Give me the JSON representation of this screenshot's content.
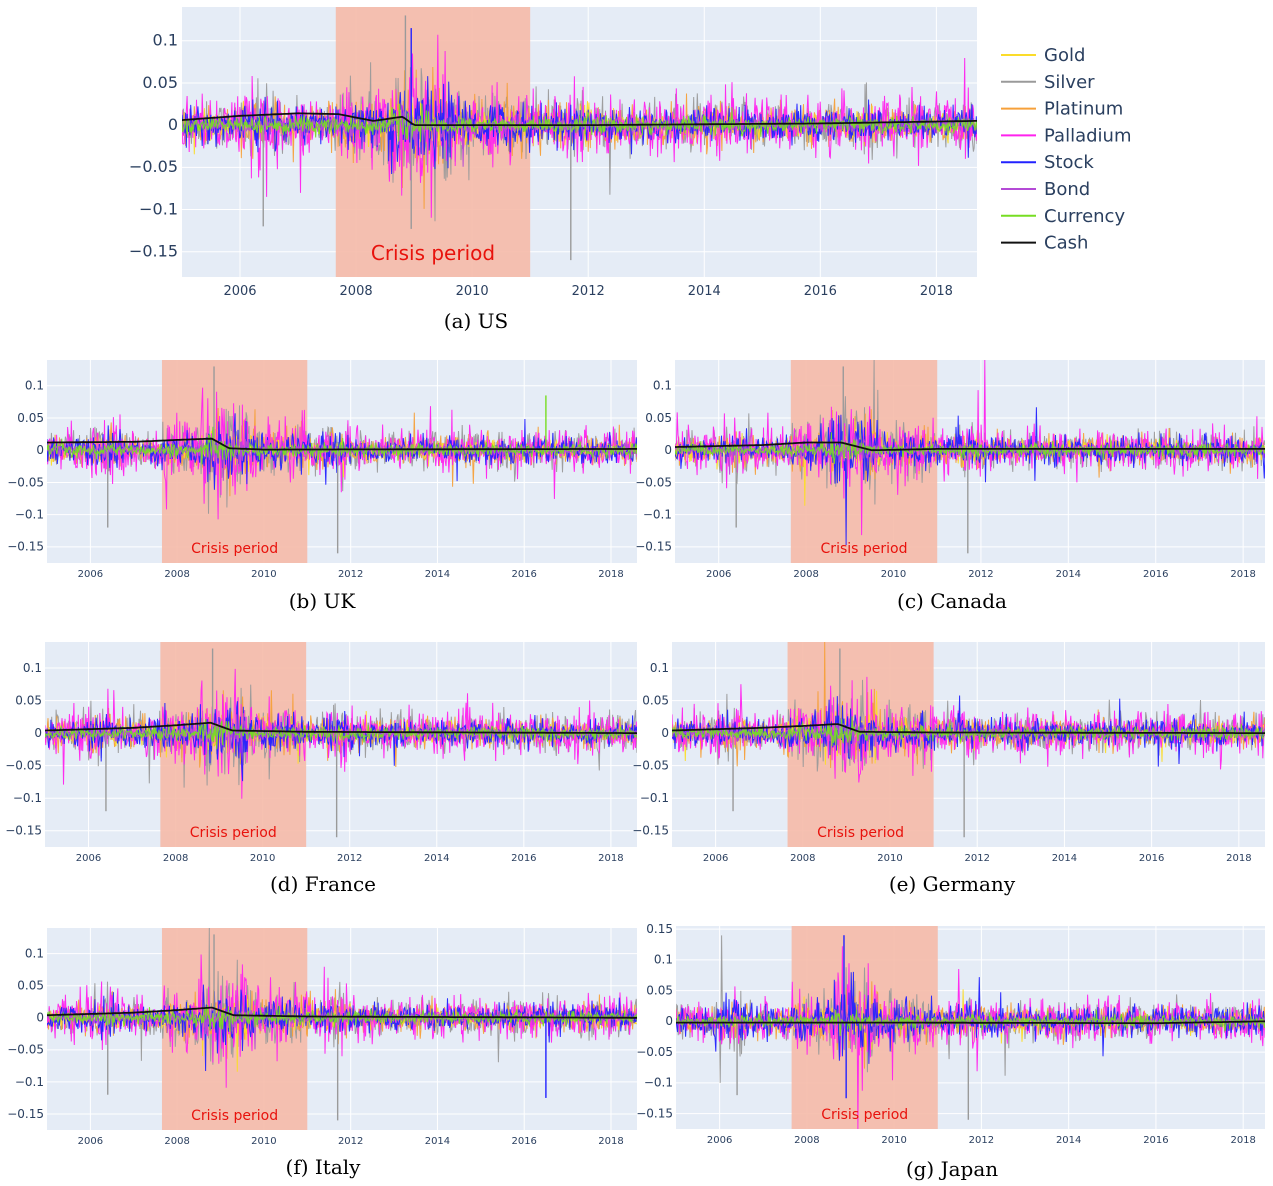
{
  "chart_data": [
    {
      "id": "a",
      "type": "line",
      "caption": "(a) US",
      "annotation": "Crisis period",
      "crisis_period": [
        2007.65,
        2011.0
      ],
      "xlim": [
        2005.0,
        2018.7
      ],
      "ylim": [
        -0.18,
        0.14
      ],
      "xticks": [
        "2006",
        "2008",
        "2010",
        "2012",
        "2014",
        "2016",
        "2018"
      ],
      "yticks": [
        [
          "0.1",
          0.1
        ],
        [
          "0.05",
          0.05
        ],
        [
          "0",
          0
        ],
        [
          "−0.05",
          -0.05
        ],
        [
          "−0.1",
          -0.1
        ],
        [
          "−0.15",
          -0.15
        ]
      ],
      "cash": [
        [
          2005.0,
          0.006
        ],
        [
          2006.0,
          0.011
        ],
        [
          2007.0,
          0.014
        ],
        [
          2007.7,
          0.013
        ],
        [
          2008.3,
          0.005
        ],
        [
          2008.8,
          0.01
        ],
        [
          2009.0,
          0.0
        ],
        [
          2010.0,
          0.0
        ],
        [
          2012.0,
          0.0
        ],
        [
          2016.0,
          0.002
        ],
        [
          2018.7,
          0.005
        ]
      ],
      "extremes": [
        [
          2008.85,
          0.13,
          "Silver"
        ],
        [
          2011.7,
          -0.16,
          "Silver"
        ],
        [
          2008.95,
          0.115,
          "Stock"
        ],
        [
          2008.95,
          -0.123,
          "Silver"
        ],
        [
          2006.4,
          -0.12,
          "Silver"
        ]
      ]
    },
    {
      "id": "b",
      "type": "line",
      "caption": "(b) UK",
      "annotation": "Crisis period",
      "crisis_period": [
        2007.65,
        2011.0
      ],
      "xlim": [
        2005.0,
        2018.6
      ],
      "ylim": [
        -0.175,
        0.14
      ],
      "xticks": [
        "2006",
        "2008",
        "2010",
        "2012",
        "2014",
        "2016",
        "2018"
      ],
      "yticks": [
        [
          "0.1",
          0.1
        ],
        [
          "0.05",
          0.05
        ],
        [
          "0",
          0
        ],
        [
          "−0.05",
          -0.05
        ],
        [
          "−0.1",
          -0.1
        ],
        [
          "−0.15",
          -0.15
        ]
      ],
      "cash": [
        [
          2005.0,
          0.012
        ],
        [
          2007.0,
          0.013
        ],
        [
          2008.0,
          0.016
        ],
        [
          2008.8,
          0.018
        ],
        [
          2009.2,
          0.003
        ],
        [
          2010.0,
          0.001
        ],
        [
          2018.6,
          0.002
        ]
      ],
      "extremes": [
        [
          2008.85,
          0.13,
          "Silver"
        ],
        [
          2011.7,
          -0.16,
          "Silver"
        ],
        [
          2016.5,
          0.085,
          "Currency"
        ],
        [
          2006.4,
          -0.12,
          "Silver"
        ]
      ]
    },
    {
      "id": "c",
      "type": "line",
      "caption": "(c) Canada",
      "annotation": "Crisis period",
      "crisis_period": [
        2007.65,
        2011.0
      ],
      "xlim": [
        2005.0,
        2018.5
      ],
      "ylim": [
        -0.175,
        0.14
      ],
      "xticks": [
        "2006",
        "2008",
        "2010",
        "2012",
        "2014",
        "2016",
        "2018"
      ],
      "yticks": [
        [
          "0.1",
          0.1
        ],
        [
          "0.05",
          0.05
        ],
        [
          "0",
          0
        ],
        [
          "−0.05",
          -0.05
        ],
        [
          "−0.1",
          -0.1
        ],
        [
          "−0.15",
          -0.15
        ]
      ],
      "cash": [
        [
          2005.0,
          0.005
        ],
        [
          2007.0,
          0.008
        ],
        [
          2008.0,
          0.012
        ],
        [
          2008.8,
          0.012
        ],
        [
          2009.5,
          0.0
        ],
        [
          2011.0,
          0.002
        ],
        [
          2018.5,
          0.002
        ]
      ],
      "extremes": [
        [
          2008.85,
          0.13,
          "Silver"
        ],
        [
          2011.7,
          -0.16,
          "Silver"
        ],
        [
          2006.4,
          -0.12,
          "Silver"
        ]
      ]
    },
    {
      "id": "d",
      "type": "line",
      "caption": "(d) France",
      "annotation": "Crisis period",
      "crisis_period": [
        2007.65,
        2011.0
      ],
      "xlim": [
        2005.0,
        2018.6
      ],
      "ylim": [
        -0.175,
        0.14
      ],
      "xticks": [
        "2006",
        "2008",
        "2010",
        "2012",
        "2014",
        "2016",
        "2018"
      ],
      "yticks": [
        [
          "0.1",
          0.1
        ],
        [
          "0.05",
          0.05
        ],
        [
          "0",
          0
        ],
        [
          "−0.05",
          -0.05
        ],
        [
          "−0.1",
          -0.1
        ],
        [
          "−0.15",
          -0.15
        ]
      ],
      "cash": [
        [
          2005.0,
          0.004
        ],
        [
          2007.0,
          0.008
        ],
        [
          2008.0,
          0.012
        ],
        [
          2008.8,
          0.016
        ],
        [
          2009.3,
          0.004
        ],
        [
          2011.0,
          0.002
        ],
        [
          2018.6,
          0.0
        ]
      ],
      "extremes": [
        [
          2008.85,
          0.13,
          "Silver"
        ],
        [
          2011.7,
          -0.16,
          "Silver"
        ],
        [
          2006.4,
          -0.12,
          "Silver"
        ]
      ]
    },
    {
      "id": "e",
      "type": "line",
      "caption": "(e) Germany",
      "annotation": "Crisis period",
      "crisis_period": [
        2007.65,
        2011.0
      ],
      "xlim": [
        2005.0,
        2018.6
      ],
      "ylim": [
        -0.175,
        0.14
      ],
      "xticks": [
        "2006",
        "2008",
        "2010",
        "2012",
        "2014",
        "2016",
        "2018"
      ],
      "yticks": [
        [
          "0.1",
          0.1
        ],
        [
          "0.05",
          0.05
        ],
        [
          "0",
          0
        ],
        [
          "−0.05",
          -0.05
        ],
        [
          "−0.1",
          -0.1
        ],
        [
          "−0.15",
          -0.15
        ]
      ],
      "cash": [
        [
          2005.0,
          0.004
        ],
        [
          2007.0,
          0.008
        ],
        [
          2008.0,
          0.011
        ],
        [
          2008.8,
          0.014
        ],
        [
          2009.3,
          0.002
        ],
        [
          2011.0,
          0.001
        ],
        [
          2018.6,
          0.0
        ]
      ],
      "extremes": [
        [
          2008.85,
          0.13,
          "Silver"
        ],
        [
          2011.7,
          -0.16,
          "Silver"
        ],
        [
          2006.4,
          -0.12,
          "Silver"
        ]
      ]
    },
    {
      "id": "f",
      "type": "line",
      "caption": "(f) Italy",
      "annotation": "Crisis period",
      "crisis_period": [
        2007.65,
        2011.0
      ],
      "xlim": [
        2005.0,
        2018.6
      ],
      "ylim": [
        -0.175,
        0.14
      ],
      "xticks": [
        "2006",
        "2008",
        "2010",
        "2012",
        "2014",
        "2016",
        "2018"
      ],
      "yticks": [
        [
          "0.1",
          0.1
        ],
        [
          "0.05",
          0.05
        ],
        [
          "0",
          0
        ],
        [
          "−0.05",
          -0.05
        ],
        [
          "−0.1",
          -0.1
        ],
        [
          "−0.15",
          -0.15
        ]
      ],
      "cash": [
        [
          2005.0,
          0.004
        ],
        [
          2007.0,
          0.008
        ],
        [
          2008.0,
          0.012
        ],
        [
          2008.8,
          0.016
        ],
        [
          2009.3,
          0.004
        ],
        [
          2011.0,
          0.002
        ],
        [
          2018.6,
          0.0
        ]
      ],
      "extremes": [
        [
          2008.85,
          0.13,
          "Silver"
        ],
        [
          2011.7,
          -0.16,
          "Silver"
        ],
        [
          2016.5,
          -0.125,
          "Stock"
        ],
        [
          2006.4,
          -0.12,
          "Silver"
        ]
      ]
    },
    {
      "id": "g",
      "type": "line",
      "caption": "(g) Japan",
      "annotation": "Crisis period",
      "crisis_period": [
        2007.65,
        2011.0
      ],
      "xlim": [
        2005.0,
        2018.5
      ],
      "ylim": [
        -0.175,
        0.155
      ],
      "xticks": [
        "2006",
        "2008",
        "2010",
        "2012",
        "2014",
        "2016",
        "2018"
      ],
      "yticks": [
        [
          "0.15",
          0.15
        ],
        [
          "0.1",
          0.1
        ],
        [
          "0.05",
          0.05
        ],
        [
          "0",
          0
        ],
        [
          "−0.05",
          -0.05
        ],
        [
          "−0.1",
          -0.1
        ],
        [
          "−0.15",
          -0.15
        ]
      ],
      "cash": [
        [
          2005.0,
          -0.002
        ],
        [
          2010.0,
          -0.002
        ],
        [
          2016.0,
          -0.003
        ],
        [
          2018.5,
          0.0
        ]
      ],
      "extremes": [
        [
          2008.85,
          0.14,
          "Stock"
        ],
        [
          2011.7,
          -0.16,
          "Silver"
        ],
        [
          2008.9,
          -0.125,
          "Stock"
        ],
        [
          2006.4,
          -0.12,
          "Silver"
        ]
      ]
    }
  ],
  "legend": [
    {
      "name": "Gold",
      "color": "#fbdc2a"
    },
    {
      "name": "Silver",
      "color": "#9a9a9a"
    },
    {
      "name": "Platinum",
      "color": "#f6a03a"
    },
    {
      "name": "Palladium",
      "color": "#ff22ee"
    },
    {
      "name": "Stock",
      "color": "#2222ff"
    },
    {
      "name": "Bond",
      "color": "#b44ad6"
    },
    {
      "name": "Currency",
      "color": "#77dd22"
    },
    {
      "name": "Cash",
      "color": "#111111"
    }
  ],
  "colors": {
    "plot_bg": "#e5ecf6",
    "grid": "#ffffff",
    "crisis": "#f5baa8",
    "crisis_text": "#e8120c"
  }
}
